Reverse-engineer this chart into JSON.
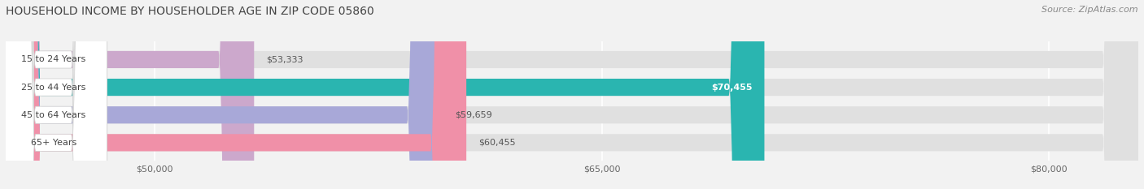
{
  "title": "HOUSEHOLD INCOME BY HOUSEHOLDER AGE IN ZIP CODE 05860",
  "source": "Source: ZipAtlas.com",
  "categories": [
    "15 to 24 Years",
    "25 to 44 Years",
    "45 to 64 Years",
    "65+ Years"
  ],
  "values": [
    53333,
    70455,
    59659,
    60455
  ],
  "bar_colors": [
    "#cca8cc",
    "#2ab5b0",
    "#a8a8d8",
    "#f090a8"
  ],
  "bar_labels": [
    "$53,333",
    "$70,455",
    "$59,659",
    "$60,455"
  ],
  "label_inside": [
    false,
    true,
    false,
    false
  ],
  "xmin": 45000,
  "xmax": 83000,
  "xticks": [
    50000,
    65000,
    80000
  ],
  "xticklabels": [
    "$50,000",
    "$65,000",
    "$80,000"
  ],
  "background_color": "#f2f2f2",
  "bar_bg_color": "#e0e0e0",
  "title_fontsize": 10,
  "source_fontsize": 8,
  "value_fontsize": 8,
  "cat_fontsize": 8,
  "tick_fontsize": 8,
  "bar_height": 0.62
}
